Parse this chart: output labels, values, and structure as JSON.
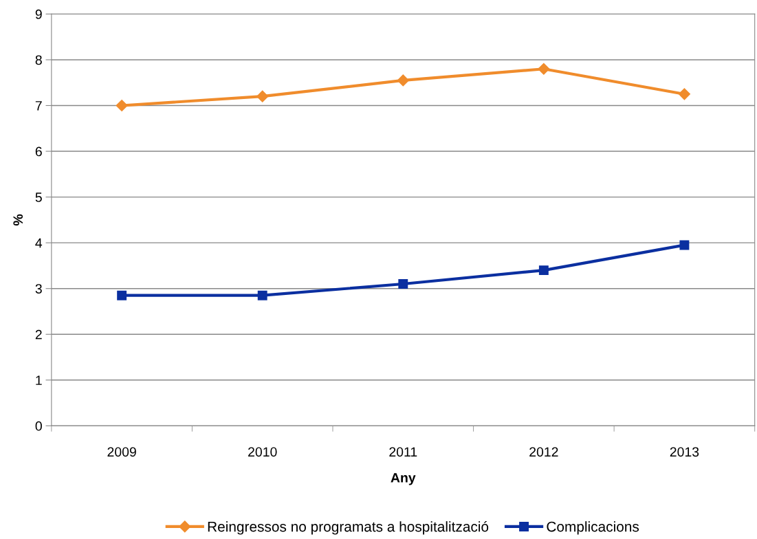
{
  "chart_data": {
    "type": "line",
    "xlabel": "Any",
    "ylabel": "%",
    "categories": [
      "2009",
      "2010",
      "2011",
      "2012",
      "2013"
    ],
    "series": [
      {
        "name": "Reingressos no programats a hospitalització",
        "color": "#f08c2c",
        "marker": "diamond",
        "values": [
          7.0,
          7.2,
          7.55,
          7.8,
          7.25
        ]
      },
      {
        "name": "Complicacions",
        "color": "#0b2fa0",
        "marker": "square",
        "values": [
          2.85,
          2.85,
          3.1,
          3.4,
          3.95
        ]
      }
    ],
    "ylim": [
      0,
      9
    ],
    "yticks": [
      0,
      1,
      2,
      3,
      4,
      5,
      6,
      7,
      8,
      9
    ],
    "grid": "y",
    "legend": "bottom",
    "line_style": "solid"
  }
}
